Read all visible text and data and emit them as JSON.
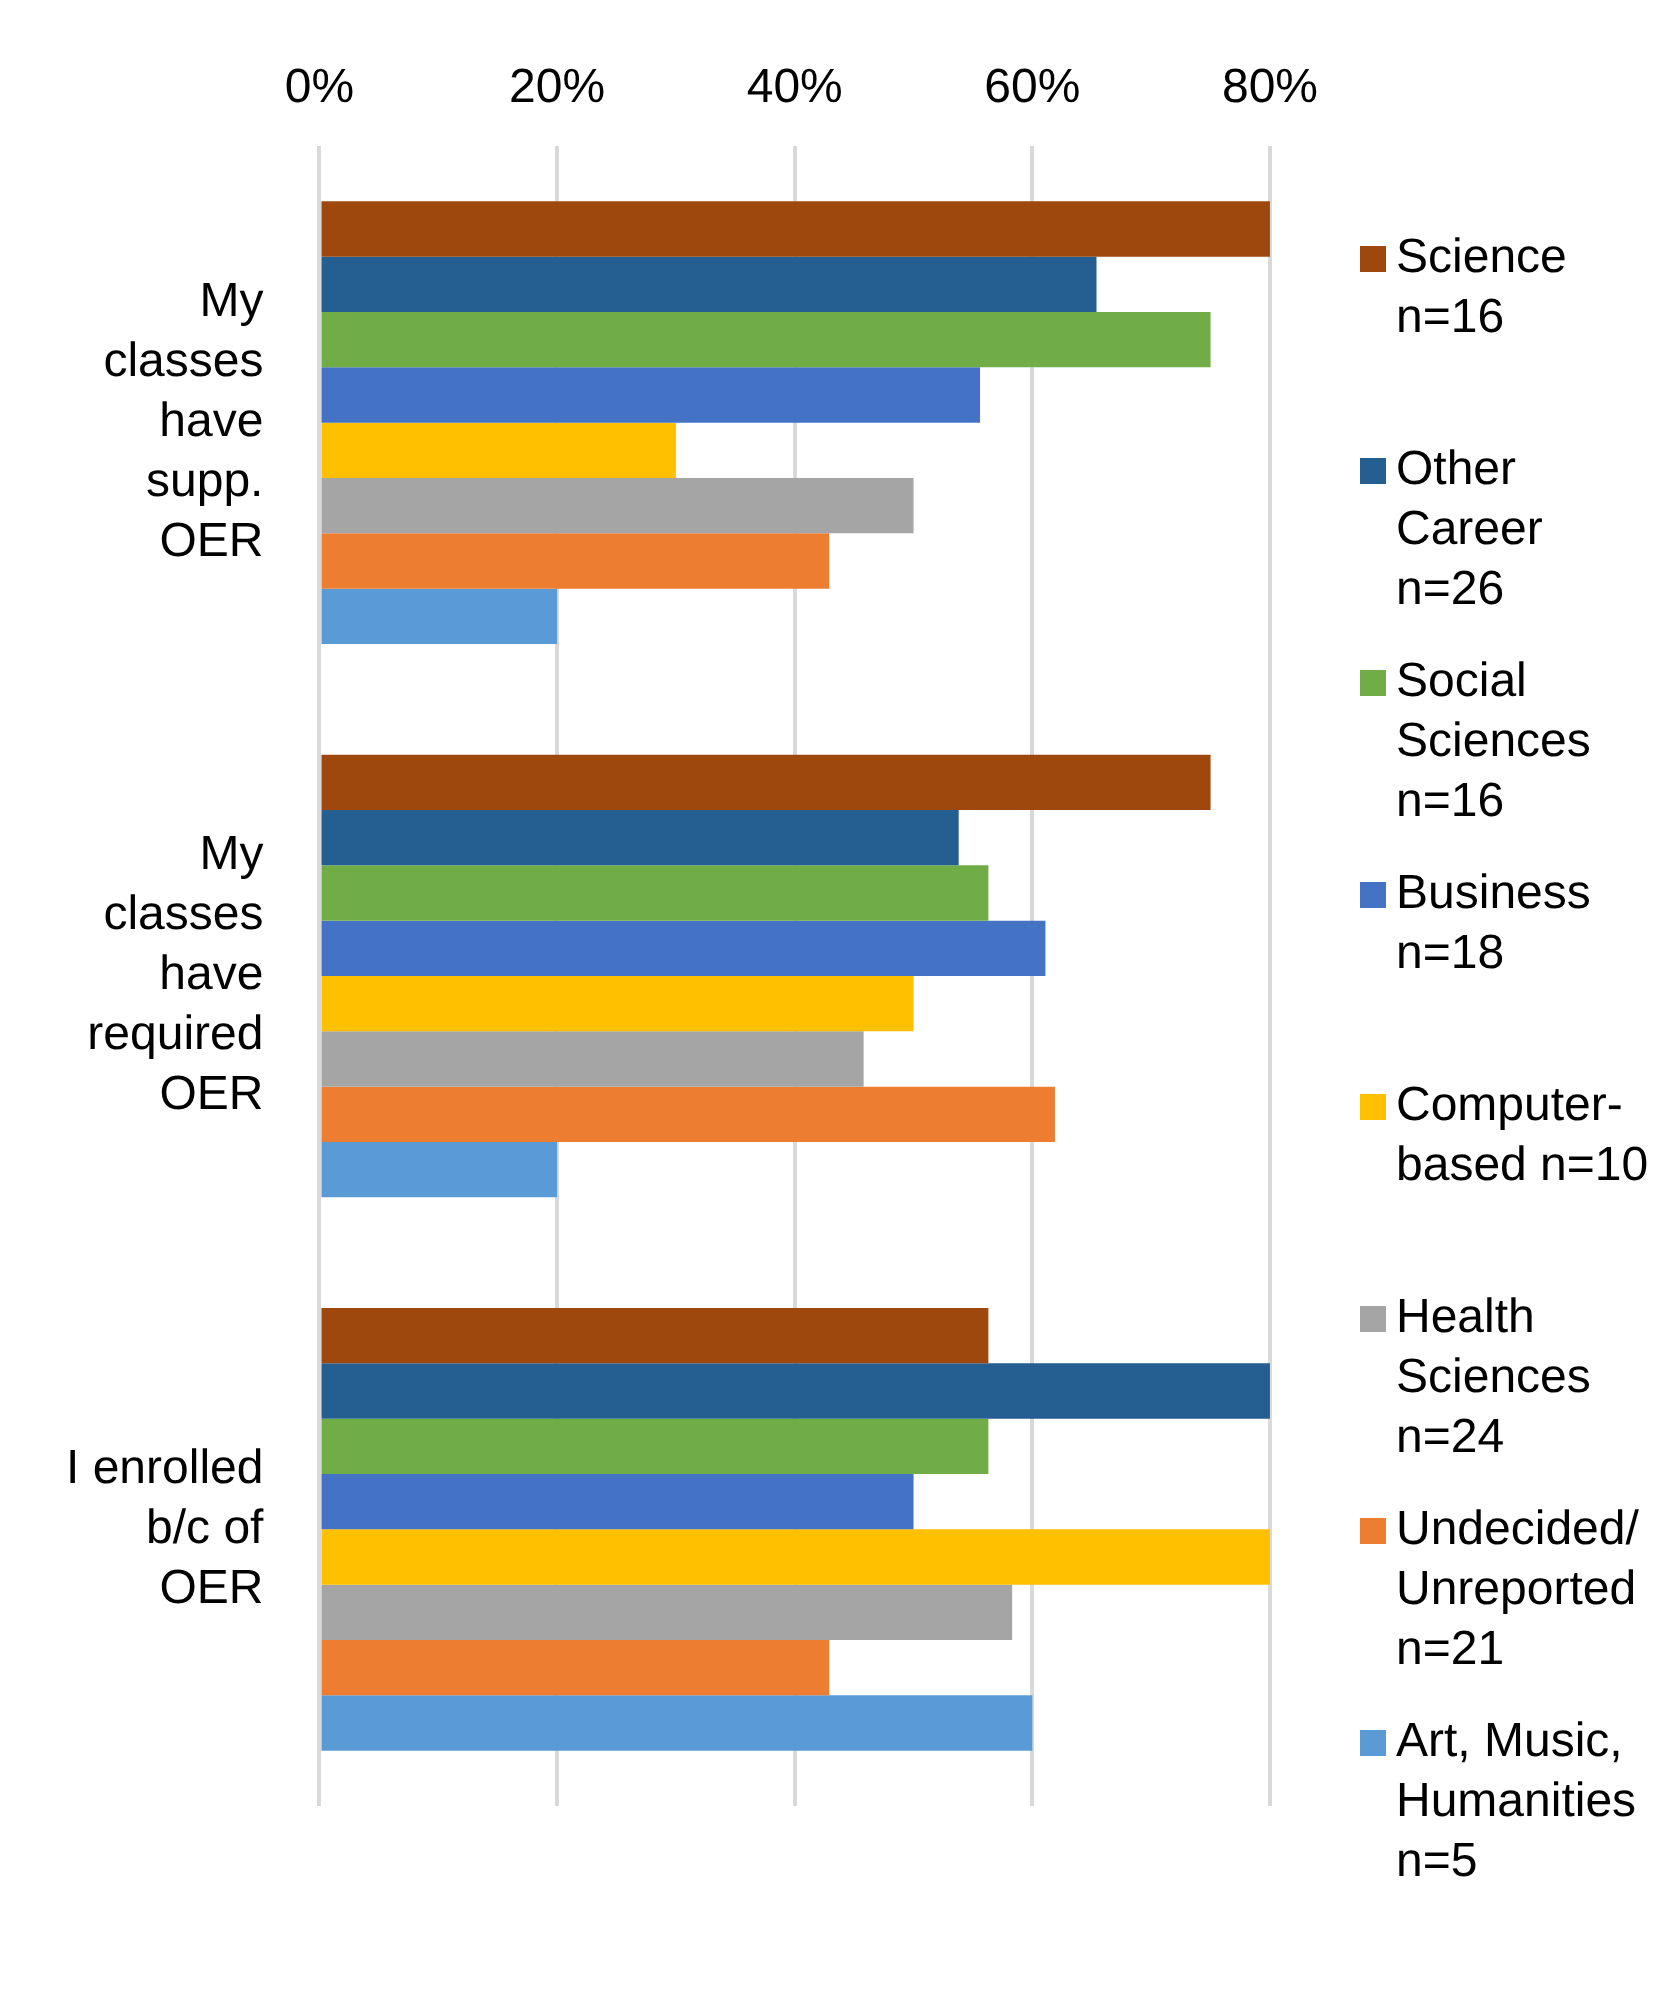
{
  "chart_data": {
    "type": "bar",
    "orientation": "horizontal",
    "categories": [
      "My classes have supp. OER",
      "My classes have required OER",
      "I enrolled b/c of OER"
    ],
    "series": [
      {
        "name": "Science n=16",
        "color": "#9e480e",
        "values": [
          80,
          75,
          56.3
        ]
      },
      {
        "name": "Other Career n=26",
        "color": "#255e91",
        "values": [
          65.4,
          53.8,
          80
        ]
      },
      {
        "name": "Social Sciences n=16",
        "color": "#70ad47",
        "values": [
          75,
          56.3,
          56.3
        ]
      },
      {
        "name": "Business n=18",
        "color": "#4472c4",
        "values": [
          55.6,
          61.1,
          50
        ]
      },
      {
        "name": "Computer-based n=10",
        "color": "#ffc000",
        "values": [
          30,
          50,
          80
        ]
      },
      {
        "name": "Health Sciences n=24",
        "color": "#a5a5a5",
        "values": [
          50,
          45.8,
          58.3
        ]
      },
      {
        "name": "Undecided/Unreported n=21",
        "color": "#ed7d31",
        "values": [
          42.9,
          61.9,
          42.9
        ]
      },
      {
        "name": "Art, Music, Humanities n=5",
        "color": "#5b9bd5",
        "values": [
          20,
          20,
          60
        ]
      }
    ],
    "xlim": [
      0,
      80
    ],
    "xticks": [
      {
        "value": 0,
        "label": "0%"
      },
      {
        "value": 20,
        "label": "20%"
      },
      {
        "value": 40,
        "label": "40%"
      },
      {
        "value": 60,
        "label": "60%"
      },
      {
        "value": 80,
        "label": "80%"
      }
    ],
    "grid": "x",
    "legend": "right"
  }
}
